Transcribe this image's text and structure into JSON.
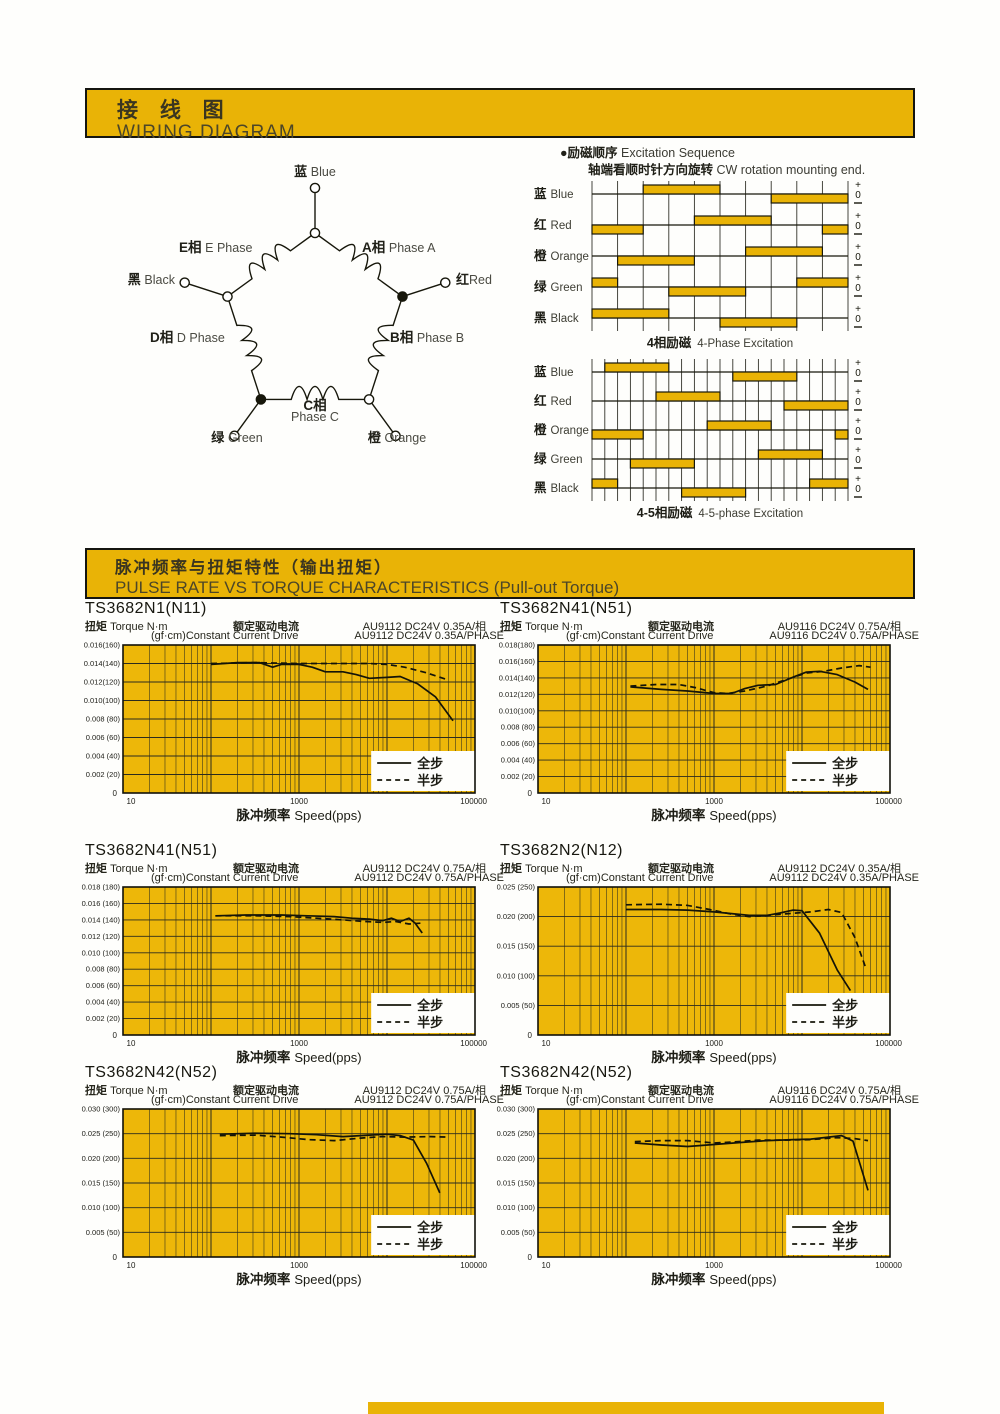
{
  "colors": {
    "gold": "#E9B306",
    "plot_gold": "#EDB709",
    "ink": "#17170B",
    "grid": "#2b2b1e"
  },
  "banner1": {
    "cn": "接 线 图",
    "en": "WIRING DIAGRAM"
  },
  "banner2": {
    "cn": "脉冲频率与扭矩特性（输出扭矩）",
    "en": "PULSE RATE VS TORQUE CHARACTERISTICS (Pull-out Torque)"
  },
  "wiring": {
    "labels": {
      "blue": {
        "cn": "蓝",
        "en": "Blue"
      },
      "red": {
        "cn": "红",
        "en": "Red"
      },
      "orange": {
        "cn": "橙",
        "en": "Orange"
      },
      "green": {
        "cn": "绿",
        "en": "Green"
      },
      "black": {
        "cn": "黑",
        "en": "Black"
      },
      "phase_a": {
        "cn": "A相",
        "en": "Phase A"
      },
      "phase_b": {
        "cn": "B相",
        "en": "Phase B"
      },
      "phase_c": {
        "cn": "C相",
        "en": "Phase C"
      },
      "phase_d": {
        "cn": "D相",
        "en": "D Phase"
      },
      "phase_e": {
        "cn": "E相",
        "en": "E Phase"
      }
    }
  },
  "excitation": {
    "heading_cn": "●励磁顺序",
    "heading_en": "Excitation Sequence",
    "subheading_cn": "轴端看顺时针方向旋转",
    "subheading_en": "CW rotation mounting end.",
    "levels": [
      "+",
      "0",
      "–"
    ],
    "charts": [
      {
        "caption_cn": "4相励磁",
        "caption_en": "4-Phase Excitation",
        "steps": 10,
        "rows": [
          {
            "cn": "蓝",
            "en": "Blue",
            "bars": [
              [
                2,
                5,
                1
              ],
              [
                7,
                10,
                -1
              ]
            ]
          },
          {
            "cn": "红",
            "en": "Red",
            "bars": [
              [
                4,
                7,
                1
              ],
              [
                9,
                10,
                -1
              ],
              [
                0,
                2,
                -1
              ]
            ]
          },
          {
            "cn": "橙",
            "en": "Orange",
            "bars": [
              [
                6,
                9,
                1
              ],
              [
                1,
                4,
                -1
              ]
            ]
          },
          {
            "cn": "绿",
            "en": "Green",
            "bars": [
              [
                8,
                10,
                1
              ],
              [
                0,
                1,
                1
              ],
              [
                3,
                6,
                -1
              ]
            ]
          },
          {
            "cn": "黑",
            "en": "Black",
            "bars": [
              [
                0,
                3,
                1
              ],
              [
                5,
                8,
                -1
              ]
            ]
          }
        ]
      },
      {
        "caption_cn": "4-5相励磁",
        "caption_en": "4-5-phase Excitation",
        "steps": 20,
        "rows": [
          {
            "cn": "蓝",
            "en": "Blue",
            "bars": [
              [
                1,
                6,
                1
              ],
              [
                11,
                16,
                -1
              ]
            ]
          },
          {
            "cn": "红",
            "en": "Red",
            "bars": [
              [
                5,
                10,
                1
              ],
              [
                15,
                20,
                -1
              ]
            ]
          },
          {
            "cn": "橙",
            "en": "Orange",
            "bars": [
              [
                9,
                14,
                1
              ],
              [
                19,
                20,
                -1
              ],
              [
                0,
                4,
                -1
              ]
            ]
          },
          {
            "cn": "绿",
            "en": "Green",
            "bars": [
              [
                13,
                18,
                1
              ],
              [
                3,
                8,
                -1
              ]
            ]
          },
          {
            "cn": "黑",
            "en": "Black",
            "bars": [
              [
                17,
                20,
                1
              ],
              [
                0,
                2,
                1
              ],
              [
                7,
                12,
                -1
              ]
            ]
          }
        ]
      }
    ]
  },
  "torque_section": {
    "axis_cn": "扭矩",
    "axis_en": "Torque N·m",
    "gf": "(gf·cm)",
    "drive_cn": "额定驱动电流",
    "drive_en": "Constant Current Drive",
    "xlabel_cn": "脉冲频率",
    "xlabel_en": "Speed(pps)",
    "legend": {
      "full": "全步",
      "half": "半步"
    },
    "xticks": [
      "10",
      "1000",
      "100000"
    ]
  },
  "chart_data": [
    {
      "type": "line",
      "model": "TS3682N1(N11)",
      "drive_line1": "AU9112 DC24V 0.35A/相",
      "drive_line2": "AU9112 DC24V 0.35A/PHASE",
      "xscale": "log",
      "xlim": [
        10,
        100000
      ],
      "ylim": [
        0,
        0.016
      ],
      "y0": "0",
      "yticks": [
        "0.016(160)",
        "0.014(140)",
        "0.012(120)",
        "0.010(100)",
        "0.008 (80)",
        "0.006 (60)",
        "0.004 (40)",
        "0.002 (20)"
      ],
      "series": [
        {
          "name": "全步",
          "style": "solid",
          "points": [
            [
              2.0,
              0.0139
            ],
            [
              2.3,
              0.0141
            ],
            [
              2.55,
              0.0141
            ],
            [
              2.7,
              0.0136
            ],
            [
              2.8,
              0.0139
            ],
            [
              3.0,
              0.0139
            ],
            [
              3.15,
              0.0136
            ],
            [
              3.3,
              0.0131
            ],
            [
              3.5,
              0.0131
            ],
            [
              3.65,
              0.0128
            ],
            [
              3.8,
              0.0124
            ],
            [
              4.0,
              0.0125
            ],
            [
              4.15,
              0.0126
            ],
            [
              4.35,
              0.0118
            ],
            [
              4.55,
              0.0104
            ],
            [
              4.75,
              0.0078
            ]
          ]
        },
        {
          "name": "半步",
          "style": "dashed",
          "points": [
            [
              2.0,
              0.014
            ],
            [
              2.5,
              0.0141
            ],
            [
              3.0,
              0.014
            ],
            [
              3.4,
              0.014
            ],
            [
              3.8,
              0.014
            ],
            [
              4.0,
              0.0139
            ],
            [
              4.2,
              0.0136
            ],
            [
              4.45,
              0.013
            ],
            [
              4.7,
              0.0122
            ]
          ]
        }
      ]
    },
    {
      "type": "line",
      "model": "TS3682N41(N51)",
      "drive_line1": "AU9116 DC24V 0.75A/相",
      "drive_line2": "AU9116 DC24V 0.75A/PHASE",
      "xscale": "log",
      "xlim": [
        10,
        100000
      ],
      "ylim": [
        0,
        0.018
      ],
      "y0": "0",
      "yticks": [
        "0.018(180)",
        "0.016(160)",
        "0.014(140)",
        "0.012(120)",
        "0.010(100)",
        "0.008 (80)",
        "0.006 (60)",
        "0.004 (40)",
        "0.002 (20)"
      ],
      "series": [
        {
          "name": "全步",
          "style": "solid",
          "points": [
            [
              2.05,
              0.0129
            ],
            [
              2.4,
              0.0126
            ],
            [
              2.7,
              0.0124
            ],
            [
              3.0,
              0.0121
            ],
            [
              3.2,
              0.0121
            ],
            [
              3.35,
              0.0127
            ],
            [
              3.5,
              0.0131
            ],
            [
              3.7,
              0.0132
            ],
            [
              3.9,
              0.0141
            ],
            [
              4.05,
              0.0147
            ],
            [
              4.2,
              0.0148
            ],
            [
              4.4,
              0.0144
            ],
            [
              4.6,
              0.0135
            ],
            [
              4.75,
              0.0126
            ]
          ]
        },
        {
          "name": "半步",
          "style": "dashed",
          "points": [
            [
              2.05,
              0.013
            ],
            [
              2.35,
              0.0132
            ],
            [
              2.6,
              0.0132
            ],
            [
              2.8,
              0.0128
            ],
            [
              3.0,
              0.0122
            ],
            [
              3.15,
              0.0121
            ],
            [
              3.35,
              0.0124
            ],
            [
              3.6,
              0.013
            ],
            [
              3.85,
              0.0139
            ],
            [
              4.05,
              0.0146
            ],
            [
              4.25,
              0.0148
            ],
            [
              4.45,
              0.0152
            ],
            [
              4.65,
              0.0155
            ],
            [
              4.78,
              0.0153
            ]
          ]
        }
      ]
    },
    {
      "type": "line",
      "model": "TS3682N41(N51)",
      "drive_line1": "AU9112 DC24V 0.75A/相",
      "drive_line2": "AU9112 DC24V 0.75A/PHASE",
      "xscale": "log",
      "xlim": [
        10,
        100000
      ],
      "ylim": [
        0,
        0.018
      ],
      "y0": "0",
      "yticks": [
        "0.018 (180)",
        "0.016 (160)",
        "0.014 (140)",
        "0.012 (120)",
        "0.010 (100)",
        "0.008 (80)",
        "0.006 (60)",
        "0.004 (40)",
        "0.002 (20)"
      ],
      "series": [
        {
          "name": "全步",
          "style": "solid",
          "points": [
            [
              2.05,
              0.0145
            ],
            [
              2.4,
              0.0146
            ],
            [
              2.8,
              0.0146
            ],
            [
              3.1,
              0.0145
            ],
            [
              3.4,
              0.0144
            ],
            [
              3.6,
              0.0142
            ],
            [
              3.8,
              0.0141
            ],
            [
              3.95,
              0.0139
            ],
            [
              4.05,
              0.0142
            ],
            [
              4.15,
              0.0138
            ],
            [
              4.25,
              0.0142
            ],
            [
              4.32,
              0.0136
            ],
            [
              4.4,
              0.0124
            ]
          ]
        },
        {
          "name": "半步",
          "style": "dashed",
          "points": [
            [
              2.05,
              0.0145
            ],
            [
              2.5,
              0.0145
            ],
            [
              2.9,
              0.0144
            ],
            [
              3.2,
              0.0142
            ],
            [
              3.5,
              0.014
            ],
            [
              3.75,
              0.0138
            ],
            [
              3.95,
              0.0137
            ],
            [
              4.1,
              0.0138
            ],
            [
              4.25,
              0.0135
            ],
            [
              4.38,
              0.0136
            ]
          ]
        }
      ]
    },
    {
      "type": "line",
      "model": "TS3682N2(N12)",
      "drive_line1": "AU9112 DC24V 0.35A/相",
      "drive_line2": "AU9112 DC24V 0.35A/PHASE",
      "xscale": "log",
      "xlim": [
        10,
        100000
      ],
      "ylim": [
        0,
        0.025
      ],
      "y0": "0",
      "yticks": [
        "0.025 (250)",
        "0.020 (200)",
        "0.015 (150)",
        "0.010 (100)",
        "0.005  (50)"
      ],
      "series": [
        {
          "name": "全步",
          "style": "solid",
          "points": [
            [
              2.0,
              0.0212
            ],
            [
              2.4,
              0.0212
            ],
            [
              2.7,
              0.0211
            ],
            [
              3.0,
              0.0208
            ],
            [
              3.2,
              0.0205
            ],
            [
              3.4,
              0.0202
            ],
            [
              3.6,
              0.0202
            ],
            [
              3.75,
              0.0206
            ],
            [
              3.9,
              0.0211
            ],
            [
              4.0,
              0.021
            ],
            [
              4.2,
              0.0172
            ],
            [
              4.4,
              0.011
            ],
            [
              4.55,
              0.0075
            ]
          ]
        },
        {
          "name": "半步",
          "style": "dashed",
          "points": [
            [
              2.0,
              0.022
            ],
            [
              2.4,
              0.0221
            ],
            [
              2.7,
              0.0219
            ],
            [
              2.95,
              0.0212
            ],
            [
              3.2,
              0.0204
            ],
            [
              3.4,
              0.02
            ],
            [
              3.6,
              0.0202
            ],
            [
              3.85,
              0.0205
            ],
            [
              4.1,
              0.0208
            ],
            [
              4.3,
              0.0212
            ],
            [
              4.45,
              0.0207
            ],
            [
              4.6,
              0.0165
            ],
            [
              4.72,
              0.0115
            ]
          ]
        }
      ]
    },
    {
      "type": "line",
      "model": "TS3682N42(N52)",
      "drive_line1": "AU9112 DC24V 0.75A/相",
      "drive_line2": "AU9112 DC24V 0.75A/PHASE",
      "xscale": "log",
      "xlim": [
        10,
        100000
      ],
      "ylim": [
        0,
        0.03
      ],
      "y0": "0",
      "yticks": [
        "0.030 (300)",
        "0.025 (250)",
        "0.020 (200)",
        "0.015 (150)",
        "0.010 (100)",
        "0.005  (50)"
      ],
      "series": [
        {
          "name": "全步",
          "style": "solid",
          "points": [
            [
              2.1,
              0.0249
            ],
            [
              2.5,
              0.0251
            ],
            [
              2.9,
              0.025
            ],
            [
              3.2,
              0.0248
            ],
            [
              3.5,
              0.0244
            ],
            [
              3.8,
              0.0247
            ],
            [
              4.0,
              0.0249
            ],
            [
              4.15,
              0.0246
            ],
            [
              4.3,
              0.0237
            ],
            [
              4.45,
              0.019
            ],
            [
              4.6,
              0.013
            ]
          ]
        },
        {
          "name": "半步",
          "style": "dashed",
          "points": [
            [
              2.1,
              0.0246
            ],
            [
              2.5,
              0.0247
            ],
            [
              2.8,
              0.0243
            ],
            [
              3.1,
              0.0238
            ],
            [
              3.4,
              0.0236
            ],
            [
              3.7,
              0.0241
            ],
            [
              3.95,
              0.0244
            ],
            [
              4.2,
              0.0243
            ],
            [
              4.5,
              0.0244
            ],
            [
              4.7,
              0.0243
            ]
          ]
        }
      ]
    },
    {
      "type": "line",
      "model": "TS3682N42(N52)",
      "drive_line1": "AU9116 DC24V 0.75A/相",
      "drive_line2": "AU9116 DC24V 0.75A/PHASE",
      "xscale": "log",
      "xlim": [
        10,
        100000
      ],
      "ylim": [
        0,
        0.03
      ],
      "y0": "0",
      "yticks": [
        "0.030 (300)",
        "0.025 (250)",
        "0.020 (200)",
        "0.015 (150)",
        "0.010 (100)",
        "0.005  (50)"
      ],
      "series": [
        {
          "name": "全步",
          "style": "solid",
          "points": [
            [
              2.1,
              0.0231
            ],
            [
              2.4,
              0.0227
            ],
            [
              2.7,
              0.0224
            ],
            [
              3.0,
              0.0228
            ],
            [
              3.3,
              0.0232
            ],
            [
              3.6,
              0.0236
            ],
            [
              3.9,
              0.0238
            ],
            [
              4.1,
              0.0239
            ],
            [
              4.3,
              0.0243
            ],
            [
              4.45,
              0.0246
            ],
            [
              4.58,
              0.0235
            ],
            [
              4.75,
              0.0135
            ]
          ]
        },
        {
          "name": "半步",
          "style": "dashed",
          "points": [
            [
              2.1,
              0.0234
            ],
            [
              2.4,
              0.0236
            ],
            [
              2.7,
              0.0236
            ],
            [
              3.0,
              0.0231
            ],
            [
              3.2,
              0.0233
            ],
            [
              3.5,
              0.0237
            ],
            [
              3.8,
              0.0237
            ],
            [
              4.1,
              0.0238
            ],
            [
              4.4,
              0.0242
            ],
            [
              4.6,
              0.024
            ],
            [
              4.75,
              0.0236
            ]
          ]
        }
      ]
    }
  ]
}
